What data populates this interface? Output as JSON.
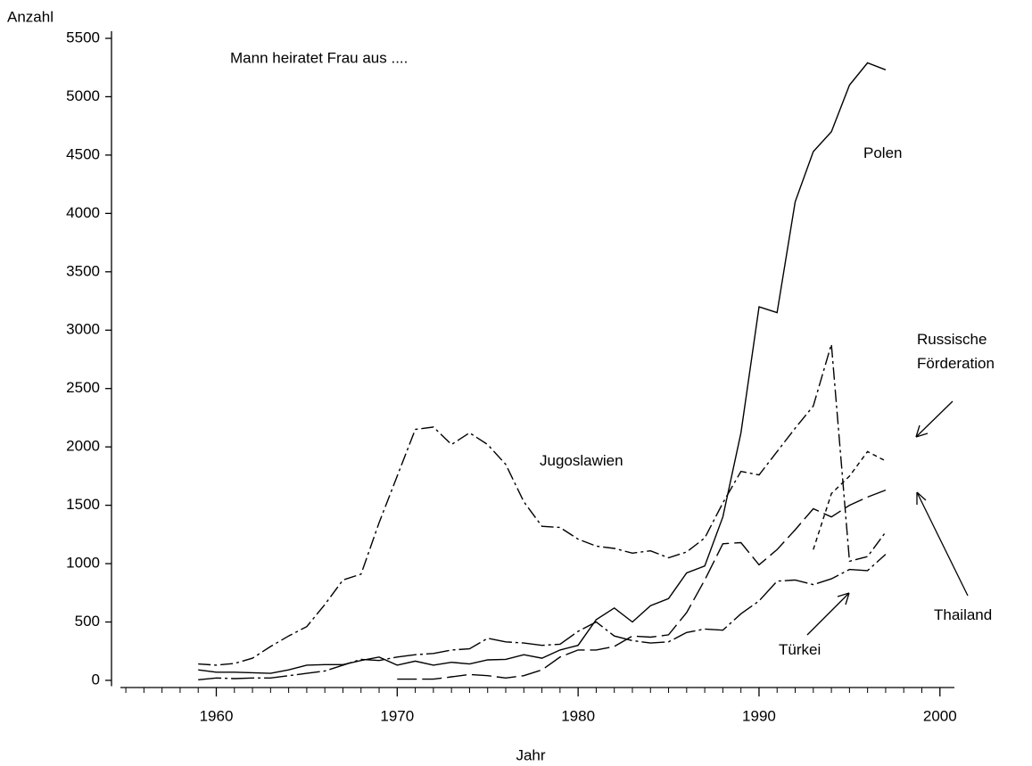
{
  "chart_data": {
    "type": "line",
    "title": "Mann heiratet Frau aus ....",
    "x_label": "Jahr",
    "y_label": "Anzahl",
    "x": [
      1959,
      1960,
      1961,
      1962,
      1963,
      1964,
      1965,
      1966,
      1967,
      1968,
      1969,
      1970,
      1971,
      1972,
      1973,
      1974,
      1975,
      1976,
      1977,
      1978,
      1979,
      1980,
      1981,
      1982,
      1983,
      1984,
      1985,
      1986,
      1987,
      1988,
      1989,
      1990,
      1991,
      1992,
      1993,
      1994,
      1995,
      1996,
      1997
    ],
    "series": [
      {
        "name": "Polen",
        "color": "#000000",
        "dash": "solid",
        "values": [
          90,
          70,
          70,
          65,
          60,
          90,
          130,
          135,
          135,
          170,
          200,
          130,
          165,
          130,
          155,
          140,
          175,
          180,
          220,
          190,
          260,
          300,
          520,
          620,
          500,
          640,
          700,
          920,
          980,
          1400,
          2120,
          3200,
          3150,
          4100,
          4530,
          4700,
          5100,
          5290,
          5230
        ]
      },
      {
        "name": "Jugoslawien",
        "color": "#000000",
        "dash": "dashdot",
        "values": [
          140,
          130,
          145,
          190,
          290,
          380,
          460,
          650,
          860,
          910,
          1350,
          1750,
          2150,
          2170,
          2020,
          2120,
          2020,
          1850,
          1530,
          1320,
          1310,
          1210,
          1150,
          1130,
          1090,
          1110,
          1050,
          1100,
          1220,
          1520,
          1790,
          1760,
          1960,
          2160,
          2350,
          2880,
          1020,
          1060,
          1270
        ]
      },
      {
        "name": "Russische Förderation",
        "color": "#000000",
        "dash": "shortdash",
        "values": [
          null,
          null,
          null,
          null,
          null,
          null,
          null,
          null,
          null,
          null,
          null,
          null,
          null,
          null,
          null,
          null,
          null,
          null,
          null,
          null,
          null,
          null,
          null,
          null,
          null,
          null,
          null,
          null,
          null,
          null,
          null,
          null,
          null,
          null,
          1120,
          1600,
          1750,
          1960,
          1880
        ]
      },
      {
        "name": "Thailand",
        "color": "#000000",
        "dash": "longdash",
        "values": [
          null,
          null,
          null,
          null,
          null,
          null,
          null,
          null,
          null,
          null,
          null,
          10,
          10,
          10,
          30,
          50,
          40,
          20,
          40,
          90,
          200,
          260,
          260,
          290,
          380,
          370,
          390,
          580,
          860,
          1170,
          1180,
          990,
          1120,
          1290,
          1470,
          1400,
          1500,
          1570,
          1630
        ]
      },
      {
        "name": "Türkei",
        "color": "#000000",
        "dash": "longdashdot",
        "values": [
          5,
          20,
          15,
          20,
          20,
          40,
          60,
          80,
          130,
          180,
          170,
          200,
          220,
          230,
          260,
          270,
          360,
          330,
          320,
          300,
          310,
          420,
          500,
          380,
          340,
          320,
          330,
          410,
          440,
          430,
          570,
          680,
          850,
          860,
          820,
          870,
          950,
          940,
          1080
        ]
      }
    ],
    "xlim": [
      1954.7,
      2000.8
    ],
    "xticks": [
      1960,
      1970,
      1980,
      1990,
      2000
    ],
    "xminorticks": [
      1955,
      1956,
      1957,
      1958,
      1959,
      1961,
      1962,
      1963,
      1964,
      1965,
      1966,
      1967,
      1968,
      1969,
      1971,
      1972,
      1973,
      1974,
      1975,
      1976,
      1977,
      1978,
      1979,
      1981,
      1982,
      1983,
      1984,
      1985,
      1986,
      1987,
      1988,
      1989,
      1991,
      1992,
      1993,
      1994,
      1995,
      1996,
      1997,
      1998,
      1999
    ],
    "ylim": [
      -50,
      5500
    ],
    "yticks": [
      0,
      500,
      1000,
      1500,
      2000,
      2500,
      3000,
      3500,
      4000,
      4500,
      5000,
      5500
    ],
    "grid": false
  }
}
